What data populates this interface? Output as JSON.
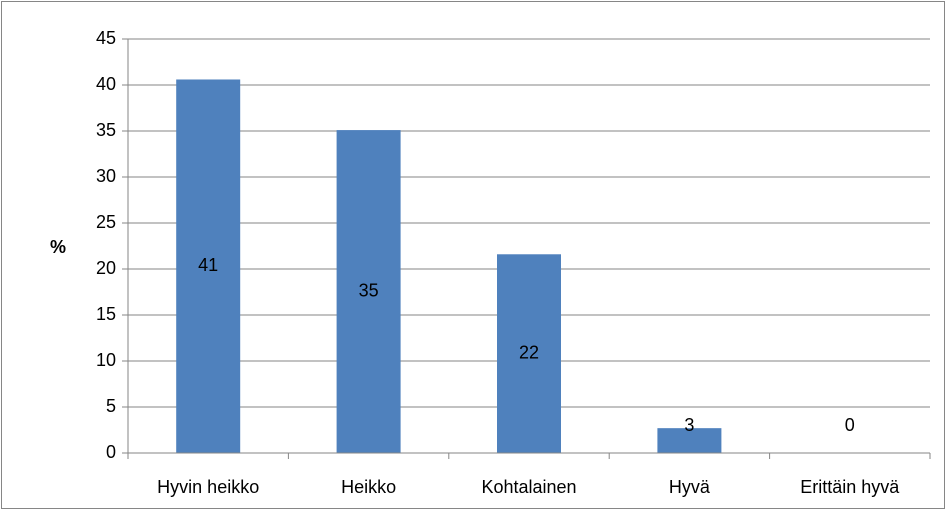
{
  "chart_data": {
    "type": "bar",
    "ylabel": "%",
    "categories": [
      "Hyvin heikko",
      "Heikko",
      "Kohtalainen",
      "Hyvä",
      "Erittäin hyvä"
    ],
    "values": [
      40.6,
      35.1,
      21.6,
      2.7,
      0
    ],
    "value_labels": [
      "41",
      "35",
      "22",
      "3",
      "0"
    ],
    "color": "#4f81bd",
    "ylim": [
      0,
      45
    ],
    "yticks": [
      0,
      5,
      10,
      15,
      20,
      25,
      30,
      35,
      40,
      45
    ],
    "grid": true
  }
}
